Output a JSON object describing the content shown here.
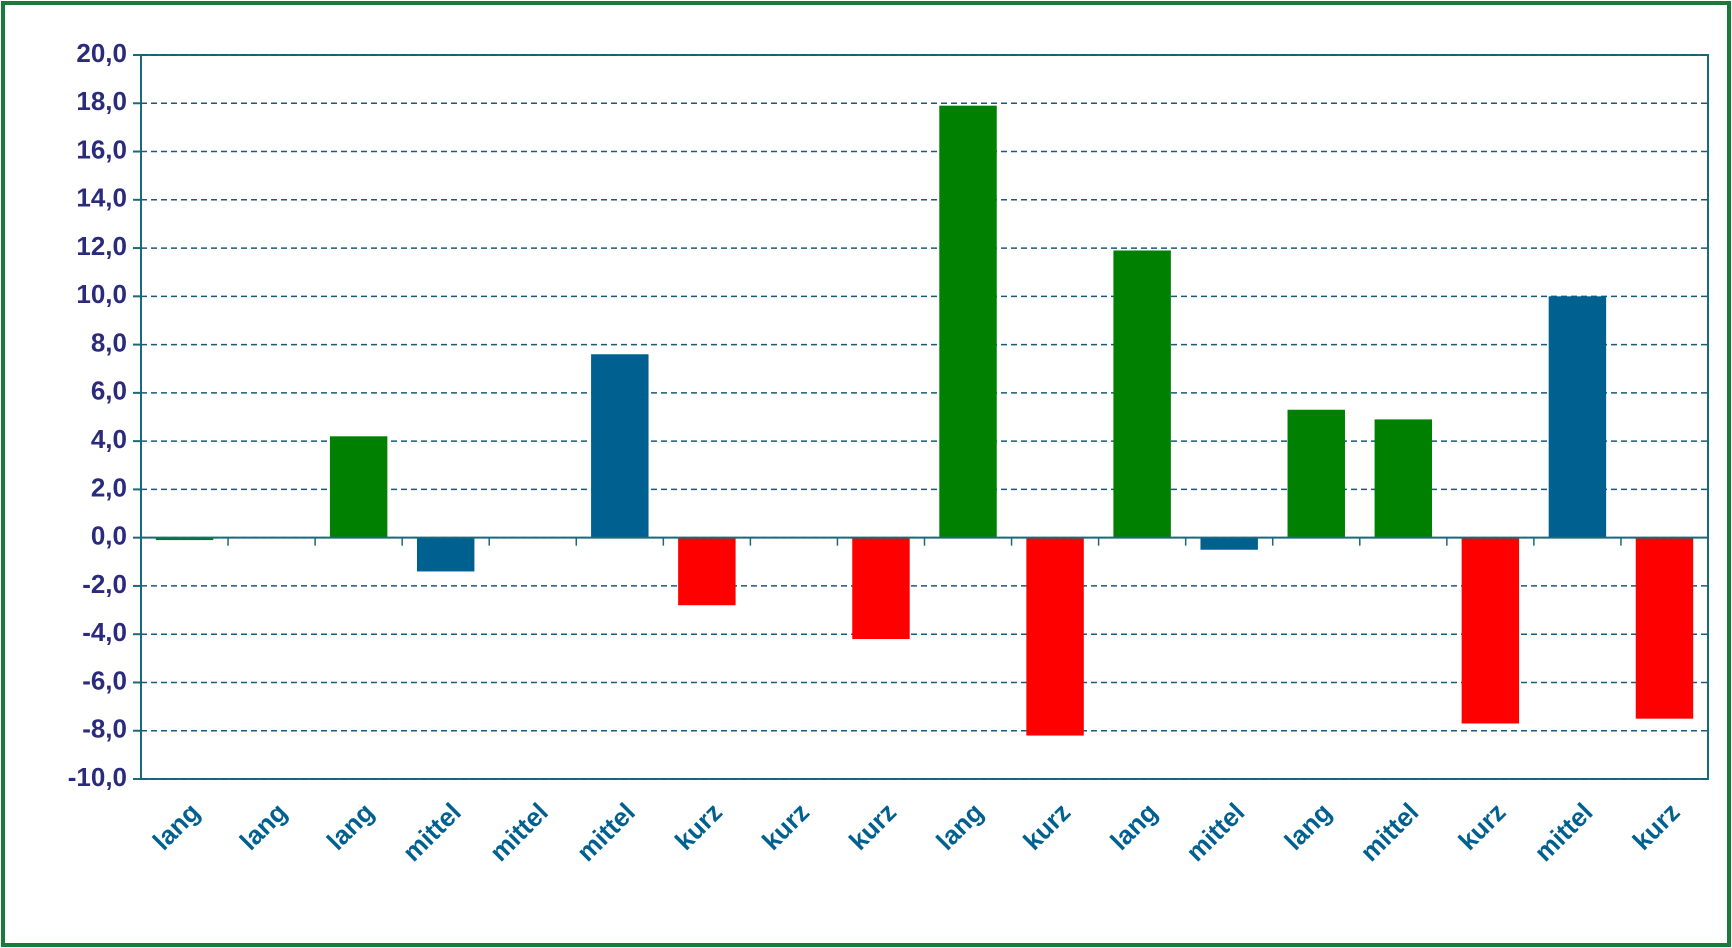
{
  "chart_data": {
    "type": "bar",
    "categories": [
      "lang",
      "lang",
      "lang",
      "mittel",
      "mittel",
      "mittel",
      "kurz",
      "kurz",
      "kurz",
      "lang",
      "kurz",
      "lang",
      "mittel",
      "lang",
      "mittel",
      "kurz",
      "mittel",
      "kurz"
    ],
    "values": [
      -0.1,
      0,
      4.2,
      -1.4,
      0,
      7.6,
      -2.8,
      0,
      -4.2,
      17.9,
      -8.2,
      11.9,
      -0.5,
      5.3,
      4.9,
      -7.7,
      10.0,
      -7.5
    ],
    "colors": [
      "#008000",
      "#008000",
      "#008000",
      "#006090",
      "#006090",
      "#006090",
      "#ff0000",
      "#ff0000",
      "#ff0000",
      "#008000",
      "#ff0000",
      "#008000",
      "#006090",
      "#008000",
      "#008000",
      "#ff0000",
      "#006090",
      "#ff0000"
    ],
    "ylim": [
      -10,
      20
    ],
    "yticks": [
      {
        "value": -10,
        "label": "-10,0"
      },
      {
        "value": -8,
        "label": "-8,0"
      },
      {
        "value": -6,
        "label": "-6,0"
      },
      {
        "value": -4,
        "label": "-4,0"
      },
      {
        "value": -2,
        "label": "-2,0"
      },
      {
        "value": 0,
        "label": "0,0"
      },
      {
        "value": 2,
        "label": "2,0"
      },
      {
        "value": 4,
        "label": "4,0"
      },
      {
        "value": 6,
        "label": "6,0"
      },
      {
        "value": 8,
        "label": "8,0"
      },
      {
        "value": 10,
        "label": "10,0"
      },
      {
        "value": 12,
        "label": "12,0"
      },
      {
        "value": 14,
        "label": "14,0"
      },
      {
        "value": 16,
        "label": "16,0"
      },
      {
        "value": 18,
        "label": "18,0"
      },
      {
        "value": 20,
        "label": "20,0"
      }
    ],
    "grid": true
  }
}
